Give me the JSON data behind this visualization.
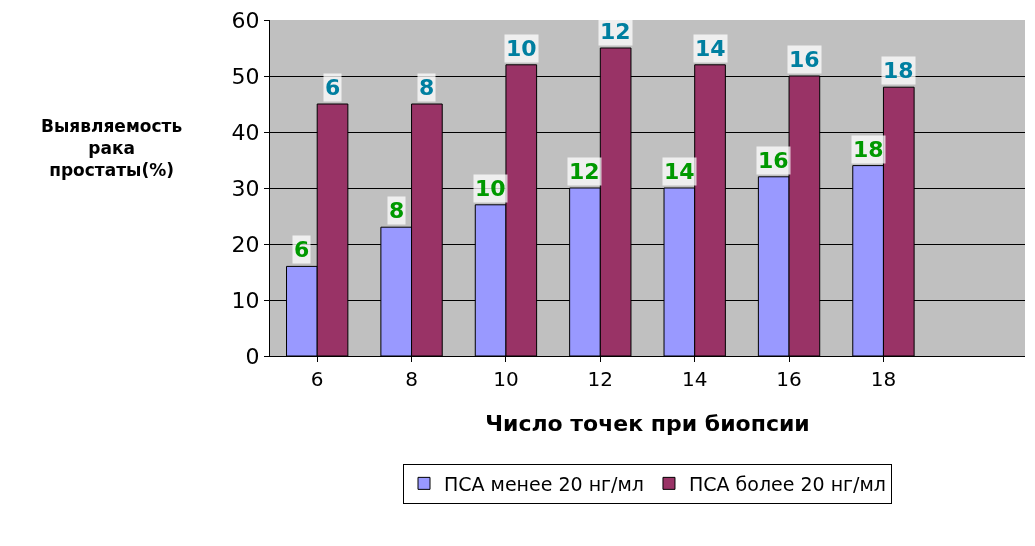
{
  "chart_data": {
    "type": "bar",
    "xlabel": "Число точек при биопсии",
    "categories": [
      "6",
      "8",
      "10",
      "12",
      "14",
      "16",
      "18"
    ],
    "series": [
      {
        "name": "ПСА менее 20 нг/мл",
        "color": "#9999ff",
        "values": [
          16,
          23,
          27,
          30,
          30,
          32,
          34
        ]
      },
      {
        "name": "ПСА более 20 нг/мл",
        "color": "#993366",
        "values": [
          45,
          45,
          52,
          55,
          52,
          50,
          48
        ]
      }
    ],
    "annotations": [
      "Выявляемость рака простаты(%)",
      {
        "text": "6",
        "x": "6",
        "y": 16
      },
      {
        "text": "8",
        "x": "8",
        "y": 23
      },
      {
        "text": "10",
        "x": "10",
        "y": 27
      },
      {
        "text": "12",
        "x": "12",
        "y": 30
      },
      {
        "text": "14",
        "x": "14",
        "y": 30
      },
      {
        "text": "16",
        "x": "16",
        "y": 32
      },
      {
        "text": "18",
        "x": "18",
        "y": 34
      },
      {
        "text": "6",
        "x": "6",
        "y": 45
      },
      {
        "text": "8",
        "x": "8",
        "y": 45
      },
      {
        "text": "10",
        "x": "10",
        "y": 52
      },
      {
        "text": "12",
        "x": "12",
        "y": 55
      },
      {
        "text": "14",
        "x": "14",
        "y": 52
      },
      {
        "text": "16",
        "x": "16",
        "y": 50
      },
      {
        "text": "18",
        "x": "18",
        "y": 48
      }
    ],
    "ylim": [
      0,
      60
    ],
    "yticks": [
      0,
      10,
      20,
      30,
      40,
      50,
      60
    ],
    "grid": "y",
    "legend": "bottom"
  }
}
